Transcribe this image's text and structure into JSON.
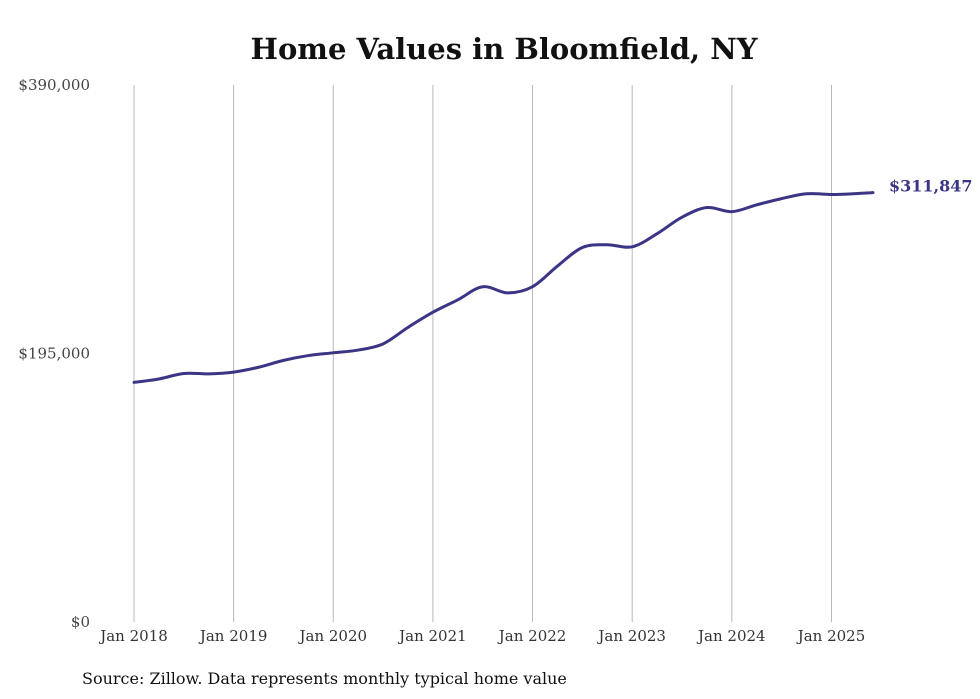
{
  "chart_data": {
    "type": "line",
    "title": "Home Values in Bloomfield, NY",
    "source": "Source: Zillow. Data represents monthly typical home value",
    "y_ticks": [
      {
        "value": 390000,
        "label": "$390,000"
      },
      {
        "value": 195000,
        "label": "$195,000"
      },
      {
        "value": 0,
        "label": "$0"
      }
    ],
    "ylim": [
      0,
      390000
    ],
    "x_ticks": [
      {
        "value": "2018-01",
        "label": "Jan 2018"
      },
      {
        "value": "2019-01",
        "label": "Jan 2019"
      },
      {
        "value": "2020-01",
        "label": "Jan 2020"
      },
      {
        "value": "2021-01",
        "label": "Jan 2021"
      },
      {
        "value": "2022-01",
        "label": "Jan 2022"
      },
      {
        "value": "2023-01",
        "label": "Jan 2023"
      },
      {
        "value": "2024-01",
        "label": "Jan 2024"
      },
      {
        "value": "2025-01",
        "label": "Jan 2025"
      }
    ],
    "xlim": [
      "2018-01",
      "2025-06"
    ],
    "grid": {
      "vertical": true,
      "horizontal": false
    },
    "line_color": "#3b3585",
    "end_label": "$311,847",
    "series": [
      {
        "values": [
          {
            "x": "2018-01",
            "y": 174000
          },
          {
            "x": "2018-04",
            "y": 176500
          },
          {
            "x": "2018-07",
            "y": 180500
          },
          {
            "x": "2018-10",
            "y": 180200
          },
          {
            "x": "2019-01",
            "y": 181500
          },
          {
            "x": "2019-04",
            "y": 185000
          },
          {
            "x": "2019-07",
            "y": 190000
          },
          {
            "x": "2019-10",
            "y": 193500
          },
          {
            "x": "2020-01",
            "y": 195500
          },
          {
            "x": "2020-04",
            "y": 197500
          },
          {
            "x": "2020-07",
            "y": 202000
          },
          {
            "x": "2020-10",
            "y": 214000
          },
          {
            "x": "2021-01",
            "y": 225000
          },
          {
            "x": "2021-04",
            "y": 234000
          },
          {
            "x": "2021-07",
            "y": 243500
          },
          {
            "x": "2021-10",
            "y": 239000
          },
          {
            "x": "2022-01",
            "y": 243500
          },
          {
            "x": "2022-04",
            "y": 258500
          },
          {
            "x": "2022-07",
            "y": 272000
          },
          {
            "x": "2022-10",
            "y": 274000
          },
          {
            "x": "2023-01",
            "y": 272500
          },
          {
            "x": "2023-04",
            "y": 282000
          },
          {
            "x": "2023-07",
            "y": 294000
          },
          {
            "x": "2023-10",
            "y": 301000
          },
          {
            "x": "2024-01",
            "y": 298000
          },
          {
            "x": "2024-04",
            "y": 303000
          },
          {
            "x": "2024-07",
            "y": 307500
          },
          {
            "x": "2024-10",
            "y": 311000
          },
          {
            "x": "2025-01",
            "y": 310500
          },
          {
            "x": "2025-03",
            "y": 310800
          },
          {
            "x": "2025-06",
            "y": 311847
          }
        ]
      }
    ]
  }
}
